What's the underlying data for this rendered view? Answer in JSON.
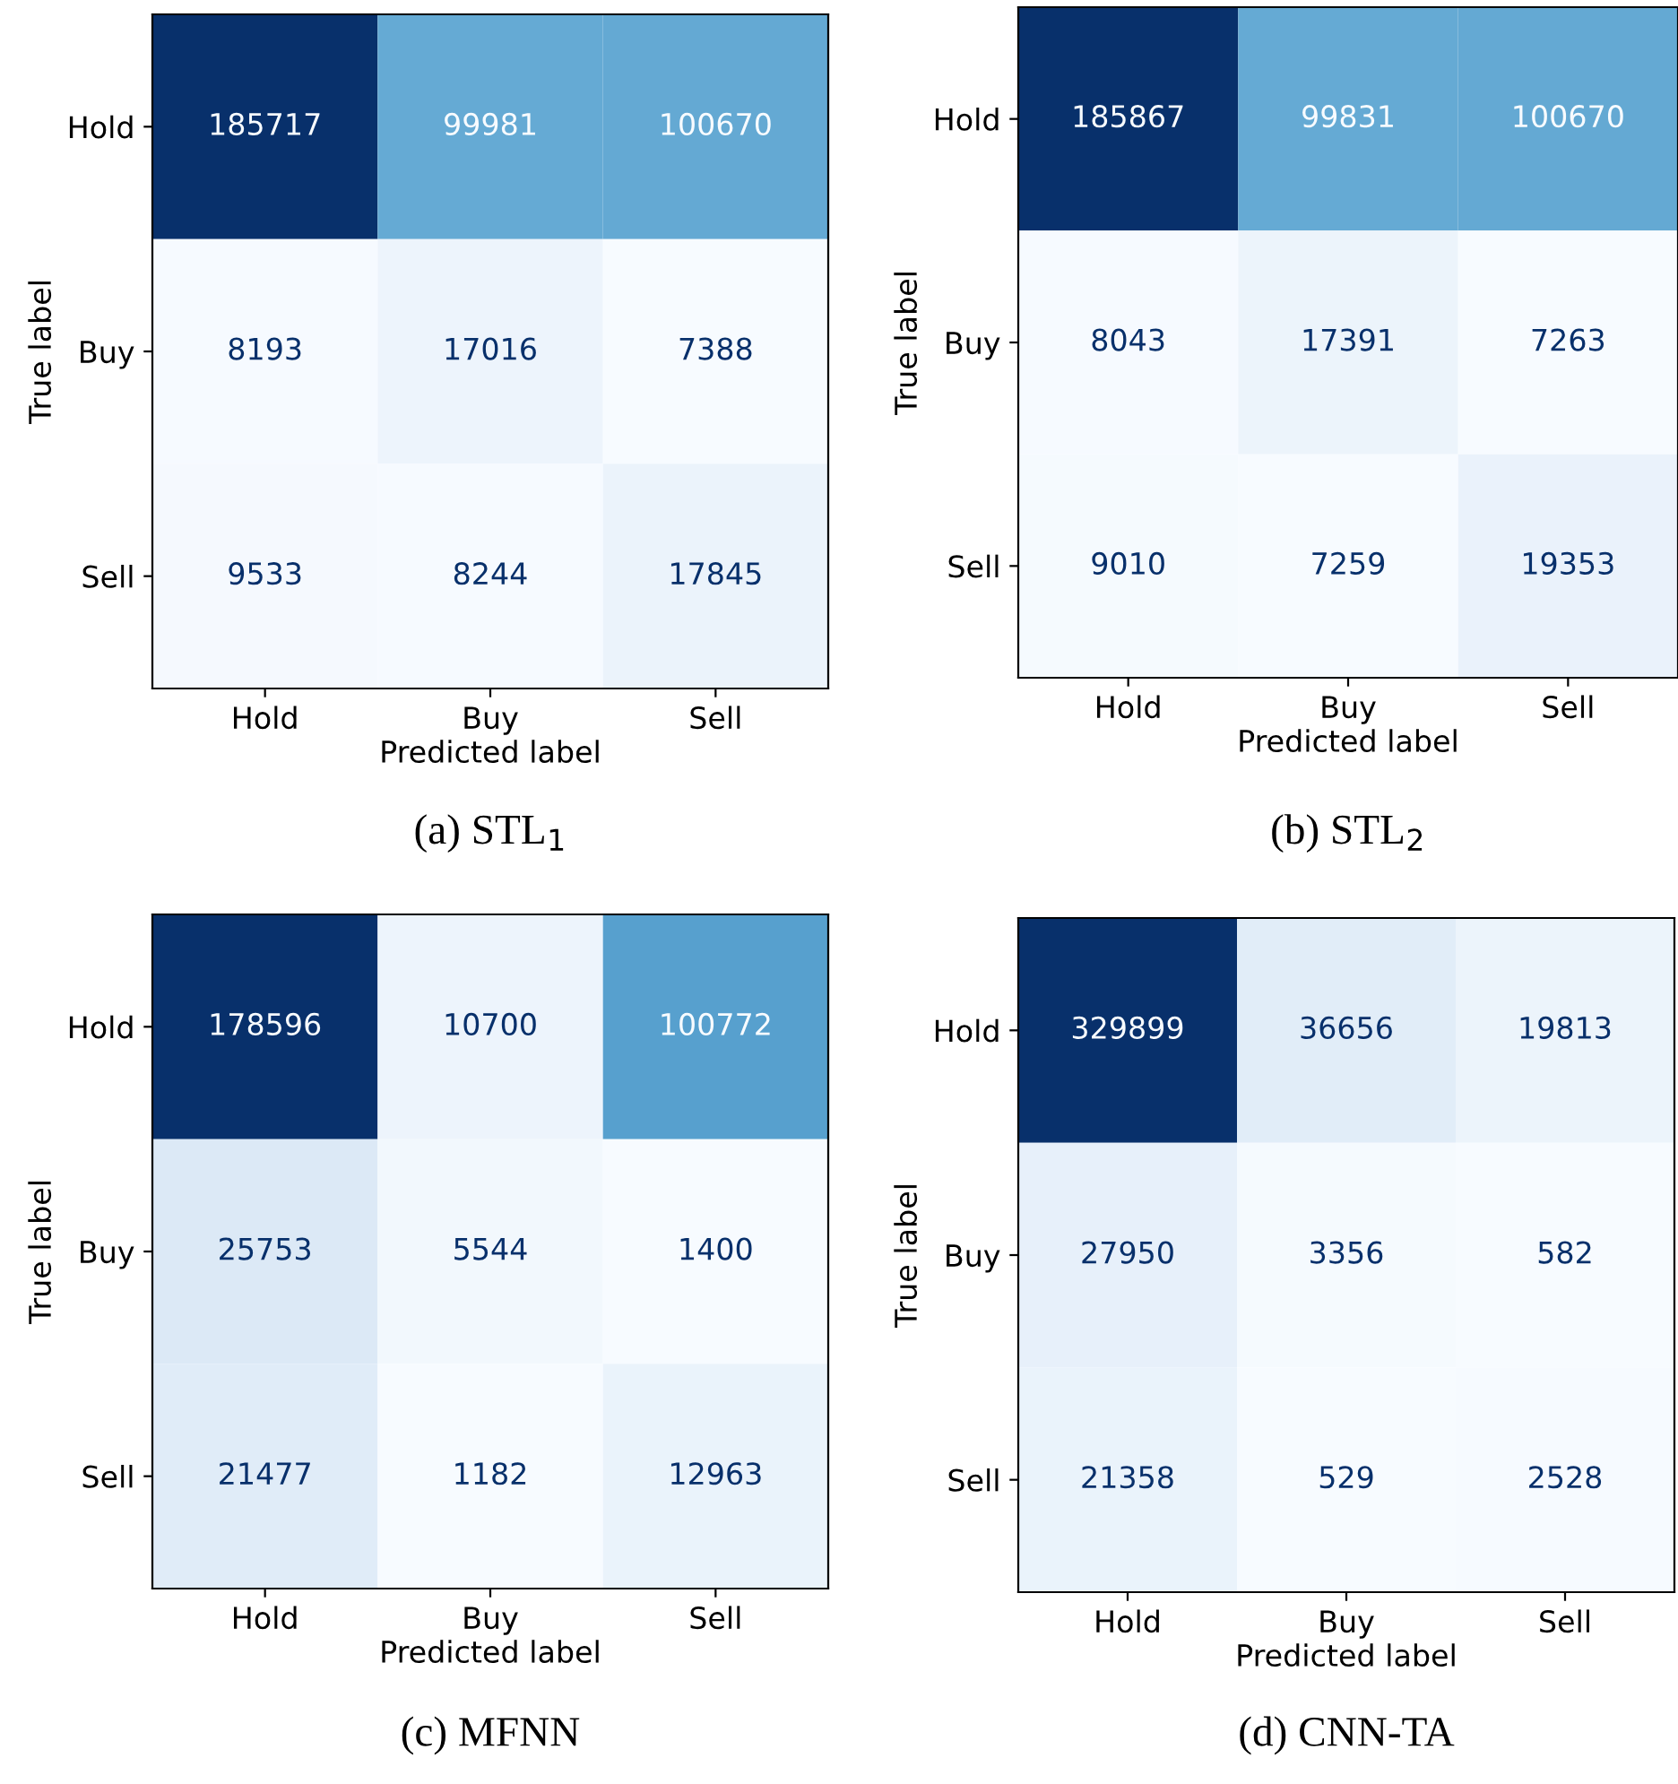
{
  "chart_data": [
    {
      "type": "heatmap",
      "title": "(a) STL$_{1}$",
      "xlabel": "Predicted label",
      "ylabel": "True label",
      "categories": [
        "Hold",
        "Buy",
        "Sell"
      ],
      "y_categories": [
        "Hold",
        "Buy",
        "Sell"
      ],
      "cells": [
        [
          185717,
          99981,
          100670
        ],
        [
          8193,
          17016,
          7388
        ],
        [
          9533,
          8244,
          17845
        ]
      ],
      "data_labels": true,
      "grid": false
    },
    {
      "type": "heatmap",
      "title": "(b) STL$_{2}$",
      "xlabel": "Predicted label",
      "ylabel": "True label",
      "categories": [
        "Hold",
        "Buy",
        "Sell"
      ],
      "y_categories": [
        "Hold",
        "Buy",
        "Sell"
      ],
      "cells": [
        [
          185867,
          99831,
          100670
        ],
        [
          8043,
          17391,
          7263
        ],
        [
          9010,
          7259,
          19353
        ]
      ],
      "data_labels": true,
      "grid": false
    },
    {
      "type": "heatmap",
      "title": "(c) MFNN",
      "xlabel": "Predicted label",
      "ylabel": "True label",
      "categories": [
        "Hold",
        "Buy",
        "Sell"
      ],
      "y_categories": [
        "Hold",
        "Buy",
        "Sell"
      ],
      "cells": [
        [
          178596,
          10700,
          100772
        ],
        [
          25753,
          5544,
          1400
        ],
        [
          21477,
          1182,
          12963
        ]
      ],
      "data_labels": true,
      "grid": false
    },
    {
      "type": "heatmap",
      "title": "(d) CNN-TA",
      "xlabel": "Predicted label",
      "ylabel": "True label",
      "categories": [
        "Hold",
        "Buy",
        "Sell"
      ],
      "y_categories": [
        "Hold",
        "Buy",
        "Sell"
      ],
      "cells": [
        [
          329899,
          36656,
          19813
        ],
        [
          27950,
          3356,
          582
        ],
        [
          21358,
          529,
          2528
        ]
      ],
      "data_labels": true,
      "grid": false
    }
  ]
}
